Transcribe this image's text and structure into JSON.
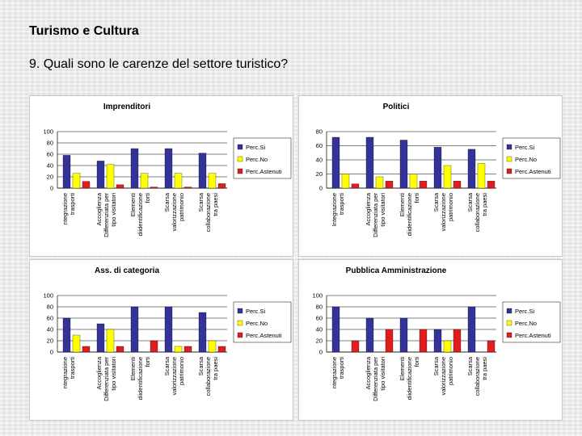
{
  "header": {
    "title": "Turismo e Cultura",
    "question": "9. Quali sono le carenze del settore turistico?"
  },
  "colors": {
    "si": "#333399",
    "no": "#ffff00",
    "astenuti": "#e11d1d"
  },
  "legend": [
    "Perc.Si",
    "Perc.No",
    "Perc.Astenuti"
  ],
  "chart_data": [
    {
      "type": "bar",
      "title": "Imprenditori",
      "ylim": [
        0,
        100
      ],
      "yticks": [
        "0",
        "20",
        "40",
        "60",
        "80",
        "100"
      ],
      "categories": [
        [
          "ntegrazione",
          "trasporti"
        ],
        [
          "Accoglienza",
          "Differenziata per",
          "tipo visitatori"
        ],
        [
          "Elementi",
          "diidentificazione",
          "forti"
        ],
        [
          "Scarsa",
          "valorizzazione",
          "patrimonio"
        ],
        [
          "Scarsa",
          "collaborazione",
          "tra paesi"
        ]
      ],
      "series": [
        {
          "name": "Perc.Si",
          "values": [
            58,
            48,
            70,
            70,
            62
          ]
        },
        {
          "name": "Perc.No",
          "values": [
            26,
            42,
            26,
            26,
            26
          ]
        },
        {
          "name": "Perc.Astenuti",
          "values": [
            12,
            6,
            2,
            2,
            8
          ]
        }
      ]
    },
    {
      "type": "bar",
      "title": "Politici",
      "ylim": [
        0,
        80
      ],
      "yticks": [
        "0",
        "20",
        "40",
        "60",
        "80"
      ],
      "categories": [
        [
          "Integrazione",
          "trasporti"
        ],
        [
          "Accoglienza",
          "Differenziata per",
          "tipo visitatori"
        ],
        [
          "Elementi",
          "diidentificazione",
          "forti"
        ],
        [
          "Scarsa",
          "valorizzazione",
          "patrimonio"
        ],
        [
          "Scarsa",
          "collaborazione",
          "tra paesi"
        ]
      ],
      "series": [
        {
          "name": "Perc.Si",
          "values": [
            72,
            72,
            68,
            58,
            55
          ]
        },
        {
          "name": "Perc.No",
          "values": [
            20,
            16,
            20,
            32,
            35
          ]
        },
        {
          "name": "Perc.Astenuti",
          "values": [
            6,
            10,
            10,
            10,
            10
          ]
        }
      ]
    },
    {
      "type": "bar",
      "title": "Ass. di categoria",
      "ylim": [
        0,
        100
      ],
      "yticks": [
        "0",
        "20",
        "40",
        "60",
        "80",
        "100"
      ],
      "categories": [
        [
          "ntegrazione",
          "trasporti"
        ],
        [
          "Accoglienza",
          "Differenziata per",
          "tipo visitatori"
        ],
        [
          "Elementi",
          "diidentificazione",
          "forti"
        ],
        [
          "Scarsa",
          "valorizzazione",
          "patrimonio"
        ],
        [
          "Scarsa",
          "collaborazione",
          "tra paesi"
        ]
      ],
      "series": [
        {
          "name": "Perc.Si",
          "values": [
            60,
            50,
            80,
            80,
            70
          ]
        },
        {
          "name": "Perc.No",
          "values": [
            30,
            40,
            0,
            10,
            20
          ]
        },
        {
          "name": "Perc.Astenuti",
          "values": [
            10,
            10,
            20,
            10,
            10
          ]
        }
      ]
    },
    {
      "type": "bar",
      "title": "Pubblica Amministrazione",
      "ylim": [
        0,
        100
      ],
      "yticks": [
        "0",
        "20",
        "40",
        "60",
        "80",
        "100"
      ],
      "categories": [
        [
          "ntegrazione",
          "trasporti"
        ],
        [
          "Accoglienza",
          "Differenziata per",
          "tipo visitatori"
        ],
        [
          "Elementi",
          "diidentificazione",
          "forti"
        ],
        [
          "Scarsa",
          "valorizzazione",
          "patrimonio"
        ],
        [
          "Scarsa",
          "collaborazione",
          "tra paesi"
        ]
      ],
      "series": [
        {
          "name": "Perc.Si",
          "values": [
            80,
            60,
            60,
            40,
            80
          ]
        },
        {
          "name": "Perc.No",
          "values": [
            0,
            0,
            0,
            20,
            0
          ]
        },
        {
          "name": "Perc.Astenuti",
          "values": [
            20,
            40,
            40,
            40,
            20
          ]
        }
      ]
    }
  ]
}
